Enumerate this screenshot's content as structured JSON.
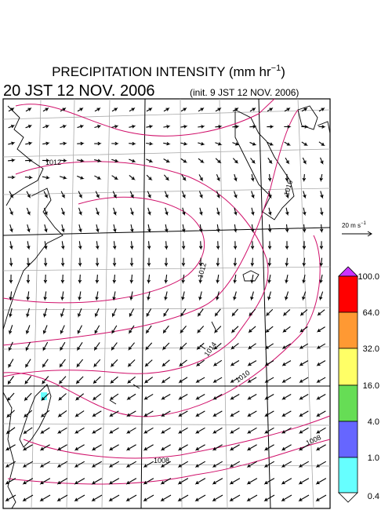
{
  "header": {
    "title": "PRECIPITATION INTENSITY (mm hr",
    "title_exponent": "−1",
    "title_close": ")",
    "valid_time": "20 JST 12 NOV. 2006",
    "init_time": "(init. 9 JST 12 NOV. 2006)"
  },
  "vector_scale": {
    "label": "20 m s",
    "exponent": "−1"
  },
  "contour_labels": [
    "1012",
    "1016",
    "1012",
    "1014",
    "1010",
    "1008",
    "1008"
  ],
  "colorbar": {
    "labels": [
      "100.0",
      "64.0",
      "32.0",
      "16.0",
      "4.0",
      "1.0",
      "0.4"
    ]
  }
}
